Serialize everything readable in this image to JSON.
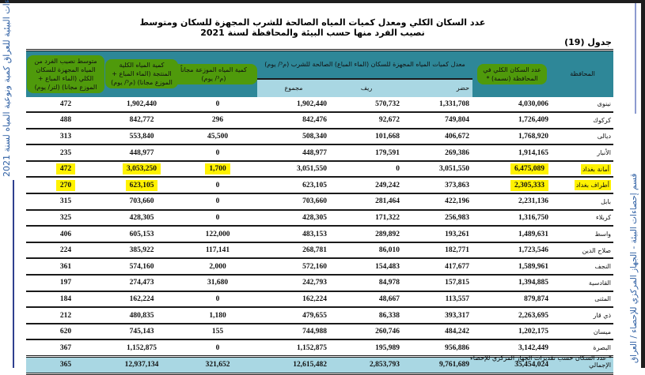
{
  "side_text": {
    "left": "الإحصاءات البيئية للعراق كمية ونوعية المياه لسنة 2021",
    "right": "قسم إحصاءات البيئة - الجهاز المركزي للإحصاء / العراق"
  },
  "title": "عدد السكان الكلي ومعدل كميات المياه الصالحة للشرب المجهزة للسكان ومتوسط نصيب الفرد منها حسب البيئة والمحافظة لسنة 2021",
  "table_number": "جدول (19)",
  "headers": {
    "governorate": "المحافظة",
    "population": "عدد السكان الكلي في المحافظة (نسمة) *",
    "supplied_group": "معدل كميات المياه المجهزة للسكان (الماء المباع) الصالحة للشرب (م³/ يوم)",
    "urban": "حضر",
    "rural": "ريف",
    "total": "مجموع",
    "free_distributed": "كمية المياه الموزعة مجاناً (م³/ يوم)",
    "total_produced": "كمية المياه الكلية المنتجة (الماء المباع + الموزع مجانا) (م³/ يوم)",
    "per_capita": "متوسط نصيب الفرد من المياه المجهزة للسكان الكلي (الماء المباع + الموزع مجانا) (لتر/ يوم)"
  },
  "highlight_color": "#fff200",
  "header_color": "#2e8798",
  "subheader_color": "#a9d7e3",
  "rows": [
    {
      "gov": "نينوى",
      "population": "4,030,006",
      "urban": "1,331,708",
      "rural": "570,732",
      "total": "1,902,440",
      "free": "0",
      "produced": "1,902,440",
      "per_capita": "472"
    },
    {
      "gov": "كركوك",
      "population": "1,726,409",
      "urban": "749,804",
      "rural": "92,672",
      "total": "842,476",
      "free": "296",
      "produced": "842,772",
      "per_capita": "488"
    },
    {
      "gov": "ديالى",
      "population": "1,768,920",
      "urban": "406,672",
      "rural": "101,668",
      "total": "508,340",
      "free": "45,500",
      "produced": "553,840",
      "per_capita": "313"
    },
    {
      "gov": "الأنبار",
      "population": "1,914,165",
      "urban": "269,386",
      "rural": "179,591",
      "total": "448,977",
      "free": "0",
      "produced": "448,977",
      "per_capita": "235"
    },
    {
      "gov": "أمانة بغداد",
      "population": "6,475,089",
      "urban": "3,051,550",
      "rural": "0",
      "total": "3,051,550",
      "free": "1,700",
      "produced": "3,053,250",
      "per_capita": "472",
      "highlight": true
    },
    {
      "gov": "أطراف بغداد",
      "population": "2,305,333",
      "urban": "373,863",
      "rural": "249,242",
      "total": "623,105",
      "free": "0",
      "produced": "623,105",
      "per_capita": "270",
      "highlight": true
    },
    {
      "gov": "بابل",
      "population": "2,231,136",
      "urban": "422,196",
      "rural": "281,464",
      "total": "703,660",
      "free": "0",
      "produced": "703,660",
      "per_capita": "315"
    },
    {
      "gov": "كربلاء",
      "population": "1,316,750",
      "urban": "256,983",
      "rural": "171,322",
      "total": "428,305",
      "free": "0",
      "produced": "428,305",
      "per_capita": "325"
    },
    {
      "gov": "واسط",
      "population": "1,489,631",
      "urban": "193,261",
      "rural": "289,892",
      "total": "483,153",
      "free": "122,000",
      "produced": "605,153",
      "per_capita": "406"
    },
    {
      "gov": "صلاح الدين",
      "population": "1,723,546",
      "urban": "182,771",
      "rural": "86,010",
      "total": "268,781",
      "free": "117,141",
      "produced": "385,922",
      "per_capita": "224"
    },
    {
      "gov": "النجف",
      "population": "1,589,961",
      "urban": "417,677",
      "rural": "154,483",
      "total": "572,160",
      "free": "2,000",
      "produced": "574,160",
      "per_capita": "361"
    },
    {
      "gov": "القادسية",
      "population": "1,394,885",
      "urban": "157,815",
      "rural": "84,978",
      "total": "242,793",
      "free": "31,680",
      "produced": "274,473",
      "per_capita": "197"
    },
    {
      "gov": "المثنى",
      "population": "879,874",
      "urban": "113,557",
      "rural": "48,667",
      "total": "162,224",
      "free": "0",
      "produced": "162,224",
      "per_capita": "184"
    },
    {
      "gov": "ذي قار",
      "population": "2,263,695",
      "urban": "393,317",
      "rural": "86,338",
      "total": "479,655",
      "free": "1,180",
      "produced": "480,835",
      "per_capita": "212"
    },
    {
      "gov": "ميسان",
      "population": "1,202,175",
      "urban": "484,242",
      "rural": "260,746",
      "total": "744,988",
      "free": "155",
      "produced": "745,143",
      "per_capita": "620"
    },
    {
      "gov": "البصرة",
      "population": "3,142,449",
      "urban": "956,886",
      "rural": "195,989",
      "total": "1,152,875",
      "free": "0",
      "produced": "1,152,875",
      "per_capita": "367"
    }
  ],
  "total_row": {
    "gov": "الإجمالي",
    "population": "35,454,024",
    "urban": "9,761,689",
    "rural": "2,853,793",
    "total": "12,615,482",
    "free": "321,652",
    "produced": "12,937,134",
    "per_capita": "365"
  },
  "footnote": "* عدد السكان حسب تقديرات الجهاز المركزي للإحصاء"
}
